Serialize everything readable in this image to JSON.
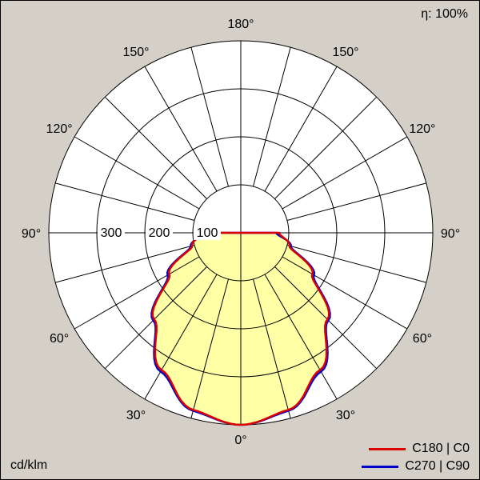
{
  "labels": {
    "efficiency": "η: 100%",
    "units": "cd/klm"
  },
  "chart_data": {
    "type": "line",
    "subtype": "polar-photometric-intensity-diagram",
    "units": "cd/klm",
    "efficiency_label": "η: 100%",
    "radial_ticks": [
      300,
      200,
      100
    ],
    "radial_circles": [
      100,
      200,
      300,
      400
    ],
    "radial_max": 400,
    "angle_step_deg": 15,
    "angle_labels_deg": [
      0,
      30,
      60,
      90,
      120,
      150,
      180
    ],
    "fill_color": "#ffffa6",
    "background": {
      "page": "#d4d0c8",
      "chart": "#ffffff"
    },
    "grid_color": "#000000",
    "series": [
      {
        "name": "C180 | C0",
        "color": "#dd0000",
        "gamma_deg": [
          0,
          15,
          30,
          45,
          60,
          75,
          90
        ],
        "values_cd_per_klm": [
          400,
          382,
          330,
          255,
          172,
          105,
          80
        ]
      },
      {
        "name": "C270 | C90",
        "color": "#0000cc",
        "gamma_deg": [
          0,
          15,
          30,
          45,
          60,
          75,
          90
        ],
        "values_cd_per_klm": [
          400,
          384,
          334,
          258,
          176,
          108,
          74
        ]
      }
    ]
  }
}
